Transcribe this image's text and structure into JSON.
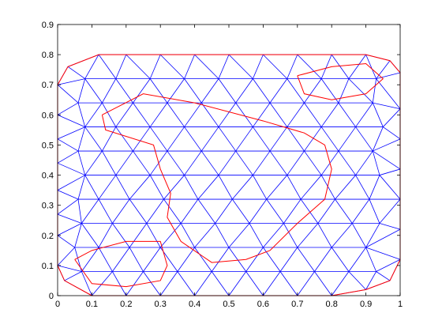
{
  "chart_data": {
    "type": "mesh",
    "xlim": [
      0,
      1
    ],
    "ylim": [
      0,
      0.9
    ],
    "xticks": [
      0,
      0.1,
      0.2,
      0.3,
      0.4,
      0.5,
      0.6,
      0.7,
      0.8,
      0.9,
      1
    ],
    "yticks": [
      0,
      0.1,
      0.2,
      0.3,
      0.4,
      0.5,
      0.6,
      0.7,
      0.8,
      0.9
    ],
    "grid": false,
    "mesh": {
      "color": "#0000ff",
      "x": [
        0.1,
        0.2,
        0.3,
        0.4,
        0.5,
        0.6,
        0.7,
        0.8,
        0.9,
        0.97,
        1,
        1,
        1,
        1,
        1,
        1,
        1,
        0.97,
        0.9,
        0.8,
        0.7,
        0.6,
        0.5,
        0.4,
        0.3,
        0.2,
        0.12,
        0.03,
        0,
        0,
        0,
        0,
        0,
        0,
        0,
        0,
        0.02,
        0.07,
        0.16,
        0.25,
        0.35,
        0.45,
        0.55,
        0.65,
        0.75,
        0.85,
        0.93,
        0.05,
        0.12,
        0.21,
        0.3,
        0.4,
        0.5,
        0.6,
        0.7,
        0.8,
        0.9,
        0.07,
        0.16,
        0.26,
        0.36,
        0.46,
        0.56,
        0.66,
        0.76,
        0.86,
        0.94,
        0.06,
        0.12,
        0.21,
        0.31,
        0.41,
        0.51,
        0.61,
        0.71,
        0.81,
        0.91,
        0.08,
        0.17,
        0.27,
        0.37,
        0.47,
        0.57,
        0.67,
        0.77,
        0.87,
        0.94,
        0.06,
        0.13,
        0.22,
        0.32,
        0.42,
        0.52,
        0.62,
        0.72,
        0.82,
        0.92,
        0.08,
        0.17,
        0.27,
        0.37,
        0.47,
        0.57,
        0.67,
        0.77,
        0.87,
        0.95,
        0.06,
        0.13,
        0.22,
        0.32,
        0.42,
        0.52,
        0.62,
        0.72,
        0.82,
        0.92,
        0.08,
        0.17,
        0.27,
        0.37,
        0.47,
        0.57,
        0.67,
        0.77,
        0.85,
        0.93
      ],
      "y": [
        0,
        0,
        0,
        0,
        0,
        0,
        0,
        0,
        0.02,
        0.05,
        0.12,
        0.22,
        0.32,
        0.42,
        0.52,
        0.62,
        0.74,
        0.78,
        0.8,
        0.8,
        0.8,
        0.8,
        0.8,
        0.8,
        0.8,
        0.8,
        0.8,
        0.76,
        0.7,
        0.6,
        0.52,
        0.44,
        0.35,
        0.27,
        0.2,
        0.1,
        0.05,
        0.08,
        0.08,
        0.08,
        0.08,
        0.08,
        0.08,
        0.08,
        0.08,
        0.08,
        0.08,
        0.16,
        0.16,
        0.16,
        0.16,
        0.16,
        0.16,
        0.16,
        0.16,
        0.16,
        0.16,
        0.24,
        0.24,
        0.24,
        0.24,
        0.24,
        0.24,
        0.24,
        0.24,
        0.24,
        0.24,
        0.32,
        0.32,
        0.32,
        0.32,
        0.32,
        0.32,
        0.32,
        0.32,
        0.32,
        0.32,
        0.4,
        0.4,
        0.4,
        0.4,
        0.4,
        0.4,
        0.4,
        0.4,
        0.4,
        0.4,
        0.48,
        0.48,
        0.48,
        0.48,
        0.48,
        0.48,
        0.48,
        0.48,
        0.48,
        0.48,
        0.56,
        0.56,
        0.56,
        0.56,
        0.56,
        0.56,
        0.56,
        0.56,
        0.56,
        0.56,
        0.64,
        0.64,
        0.64,
        0.64,
        0.64,
        0.64,
        0.64,
        0.64,
        0.64,
        0.64,
        0.72,
        0.72,
        0.72,
        0.72,
        0.72,
        0.72,
        0.72,
        0.72,
        0.72,
        0.72
      ]
    },
    "boundaries": [
      {
        "color": "#ff0000",
        "x": [
          0.1,
          0.2,
          0.3,
          0.4,
          0.5,
          0.6,
          0.7,
          0.8,
          0.9,
          0.97,
          1,
          1,
          1,
          0.97,
          0.9,
          0.8,
          0.6,
          0.4,
          0.2,
          0.12,
          0.03,
          0,
          0,
          0,
          0.02,
          0.1
        ],
        "y": [
          0,
          0,
          0,
          0,
          0,
          0,
          0,
          0,
          0.02,
          0.05,
          0.12,
          0.42,
          0.74,
          0.78,
          0.8,
          0.8,
          0.8,
          0.8,
          0.8,
          0.8,
          0.76,
          0.7,
          0.35,
          0.1,
          0.05,
          0
        ]
      },
      {
        "color": "#ff0000",
        "x": [
          0.13,
          0.25,
          0.4,
          0.6,
          0.72,
          0.78,
          0.8,
          0.78,
          0.7,
          0.62,
          0.55,
          0.45,
          0.36,
          0.32,
          0.33,
          0.3,
          0.28,
          0.14,
          0.13
        ],
        "y": [
          0.6,
          0.67,
          0.64,
          0.58,
          0.54,
          0.5,
          0.42,
          0.32,
          0.24,
          0.15,
          0.12,
          0.11,
          0.18,
          0.26,
          0.34,
          0.42,
          0.5,
          0.55,
          0.6
        ]
      },
      {
        "color": "#ff0000",
        "x": [
          0.05,
          0.1,
          0.2,
          0.3,
          0.32,
          0.3,
          0.2,
          0.1,
          0.05
        ],
        "y": [
          0.12,
          0.15,
          0.18,
          0.18,
          0.1,
          0.05,
          0.03,
          0.04,
          0.12
        ]
      },
      {
        "color": "#ff0000",
        "x": [
          0.7,
          0.8,
          0.9,
          0.95,
          0.9,
          0.8,
          0.72,
          0.7
        ],
        "y": [
          0.73,
          0.76,
          0.77,
          0.72,
          0.67,
          0.65,
          0.67,
          0.73
        ]
      }
    ]
  }
}
